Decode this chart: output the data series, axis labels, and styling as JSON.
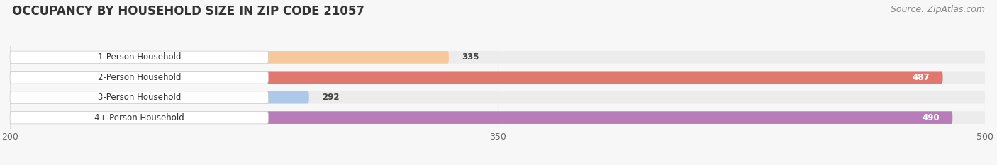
{
  "title": "OCCUPANCY BY HOUSEHOLD SIZE IN ZIP CODE 21057",
  "source": "Source: ZipAtlas.com",
  "categories": [
    "1-Person Household",
    "2-Person Household",
    "3-Person Household",
    "4+ Person Household"
  ],
  "values": [
    335,
    487,
    292,
    490
  ],
  "bar_colors": [
    "#f7c89b",
    "#e07870",
    "#aec9e8",
    "#b87db8"
  ],
  "bar_bg_color": "#ececec",
  "xlim": [
    200,
    500
  ],
  "xticks": [
    200,
    350,
    500
  ],
  "label_colors_inside": [
    "#333333",
    "#ffffff",
    "#333333",
    "#ffffff"
  ],
  "value_colors": [
    "#555555",
    "#ffffff",
    "#555555",
    "#ffffff"
  ],
  "title_fontsize": 12,
  "source_fontsize": 9,
  "bar_height": 0.62,
  "figsize": [
    14.06,
    2.33
  ],
  "dpi": 100,
  "bg_color": "#f7f7f7",
  "grid_color": "#dddddd"
}
